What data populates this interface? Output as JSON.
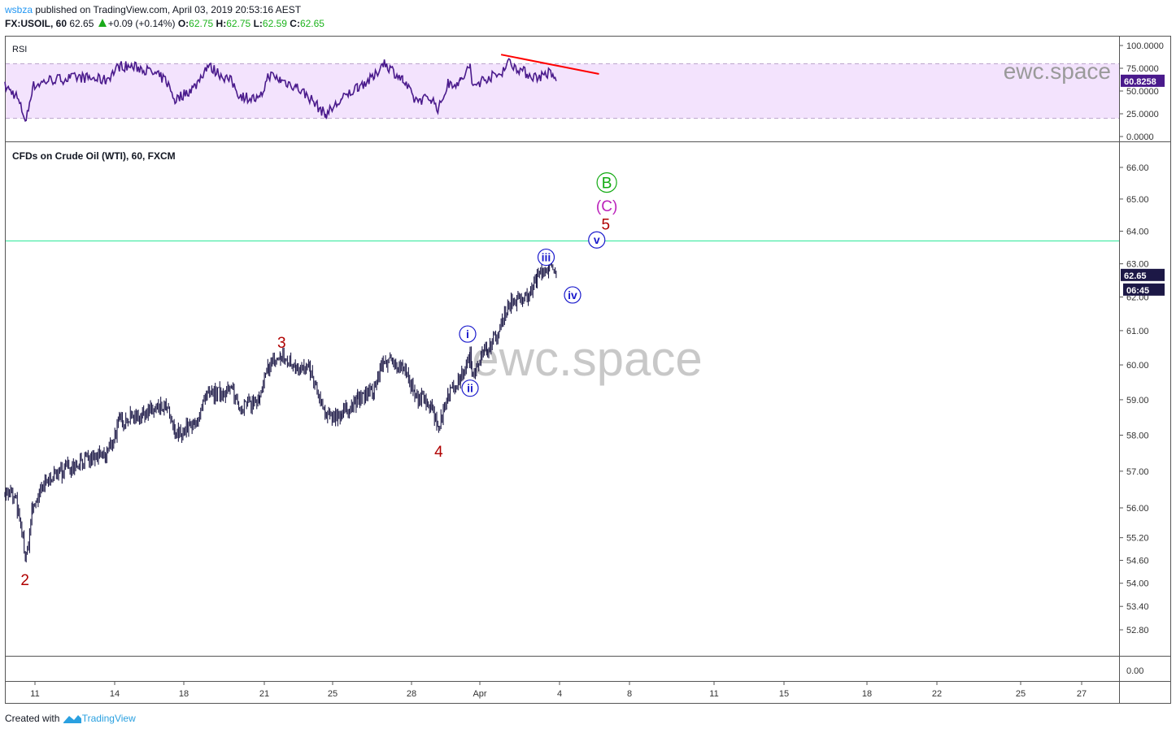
{
  "header": {
    "user": "wsbza",
    "published": "published on TradingView.com, April 03, 2019 20:53:16 AEST",
    "symbol": "FX:USOIL, 60",
    "last": "62.65",
    "change": "+0.09 (+0.14%)",
    "o_label": "O:",
    "o": "62.75",
    "h_label": "H:",
    "h": "62.75",
    "l_label": "L:",
    "l": "62.59",
    "c_label": "C:",
    "c": "62.65"
  },
  "rsi_pane": {
    "title": "RSI",
    "value_badge": "60.8258",
    "ticks": [
      "100.0000",
      "75.0000",
      "50.0000",
      "25.0000",
      "0.0000"
    ],
    "tick_values": [
      100,
      75,
      50,
      25,
      0
    ],
    "bands": [
      80,
      20
    ],
    "watermark": "ewc.space"
  },
  "main_pane": {
    "title": "CFDs on Crude Oil (WTI), 60, FXCM",
    "watermark": "ewc.space",
    "price_badge": "62.65",
    "countdown_badge": "06:45",
    "ticks": [
      "66.00",
      "65.00",
      "64.00",
      "63.00",
      "62.00",
      "61.00",
      "60.00",
      "59.00",
      "58.00",
      "57.00",
      "56.00",
      "55.20",
      "54.60",
      "54.00",
      "53.40",
      "52.80"
    ],
    "tick_values": [
      66,
      65,
      64,
      63,
      62,
      61,
      60,
      59,
      58,
      57,
      56,
      55.2,
      54.6,
      54,
      53.4,
      52.8
    ]
  },
  "volume_pane": {
    "tick": "0.00"
  },
  "time_axis": {
    "ticks": [
      "11",
      "14",
      "18",
      "21",
      "25",
      "28",
      "Apr",
      "4",
      "8",
      "11",
      "15",
      "18",
      "22",
      "25",
      "27"
    ],
    "tick_dates": [
      "Mar 11",
      "Mar 14",
      "Mar 18",
      "Mar 21",
      "Mar 25",
      "Mar 28",
      "Apr 1",
      "Apr 4",
      "Apr 8",
      "Apr 11",
      "Apr 15",
      "Apr 18",
      "Apr 22",
      "Apr 25",
      "Apr 27"
    ]
  },
  "colors": {
    "rsi_line": "#4a1a8c",
    "rsi_band": "#f3e3fd",
    "candle": "#1c1846",
    "trendline": "#ff0000",
    "hline": "#2ee89a",
    "wave_red": "#b00000",
    "wave_blue": "#1a1acc",
    "wave_green": "#11aa11",
    "wave_magenta": "#bb22bb",
    "badge_rsi": "#4a1a8c",
    "badge_price": "#1c1846"
  },
  "chart_data": {
    "type": "candlestick",
    "scale": "log",
    "ylim": [
      52.5,
      66.6
    ],
    "rsi_ylim": [
      0,
      100
    ],
    "x": [
      "Mar 10 00:00",
      "Mar 10 09:00",
      "Mar 10 17:00",
      "Mar 10 22:00",
      "Mar 11 12:00",
      "Mar 12 18:00",
      "Mar 13 16:00",
      "Mar 14 05:00",
      "Mar 15 02:00",
      "Mar 17 04:00",
      "Mar 17 14:00",
      "Mar 18 10:00",
      "Mar 18 21:00",
      "Mar 19 19:00",
      "Mar 20 02:00",
      "Mar 20 20:00",
      "Mar 21 04:00",
      "Mar 21 15:00",
      "Mar 22 06:00",
      "Mar 22 21:00",
      "Mar 24 15:00",
      "Mar 25 08:00",
      "Mar 25 23:00",
      "Mar 26 14:00",
      "Mar 26 22:00",
      "Mar 27 16:00",
      "Mar 28 03:00",
      "Mar 28 18:00",
      "Mar 29 01:00",
      "Mar 29 09:00",
      "Mar 29 20:00",
      "Mar 31 08:00",
      "Mar 31 11:00",
      "Apr 1 07:00",
      "Apr 1 18:00",
      "Apr 2 01:00",
      "Apr 2 20:00",
      "Apr 3 04:00",
      "Apr 3 15:00",
      "Apr 3 21:00"
    ],
    "price": [
      56.5,
      56.2,
      54.6,
      56.0,
      56.8,
      57.3,
      57.4,
      58.4,
      58.6,
      58.8,
      58.0,
      58.3,
      59.1,
      59.3,
      58.8,
      59.0,
      60.0,
      60.2,
      60.0,
      59.8,
      58.5,
      58.6,
      59.0,
      59.3,
      60.1,
      60.0,
      59.1,
      58.9,
      58.2,
      59.2,
      59.6,
      60.2,
      59.8,
      60.5,
      61.0,
      61.8,
      62.0,
      62.6,
      62.9,
      62.65
    ],
    "rsi": [
      55,
      45,
      17,
      55,
      62,
      65,
      62,
      78,
      75,
      62,
      40,
      55,
      78,
      60,
      45,
      40,
      68,
      62,
      55,
      42,
      24,
      40,
      55,
      65,
      82,
      62,
      40,
      42,
      30,
      58,
      60,
      78,
      55,
      65,
      68,
      82,
      68,
      65,
      70,
      61
    ],
    "rsi_trendline": [
      {
        "x": "Apr 1 19:00",
        "y": 90
      },
      {
        "x": "Apr 5 12:00",
        "y": 68.75
      }
    ],
    "horizontal_line": 63.7,
    "wave_labels": [
      {
        "text": "2",
        "x": "Mar 10 16:00",
        "y": 54.1,
        "style": "red"
      },
      {
        "text": "3",
        "x": "Mar 21 16:00",
        "y": 60.66,
        "style": "red"
      },
      {
        "text": "4",
        "x": "Mar 29 01:00",
        "y": 57.56,
        "style": "red"
      },
      {
        "text": "i",
        "x": "Mar 31 04:00",
        "y": 60.9,
        "style": "blue-circle"
      },
      {
        "text": "ii",
        "x": "Mar 31 08:00",
        "y": 59.33,
        "style": "blue-circle"
      },
      {
        "text": "iii",
        "x": "Apr 3 12:00",
        "y": 63.2,
        "style": "blue-circle"
      },
      {
        "text": "iv",
        "x": "Apr 4 12:00",
        "y": 62.06,
        "style": "blue-circle"
      },
      {
        "text": "v",
        "x": "Apr 5 10:00",
        "y": 63.73,
        "style": "blue-circle"
      },
      {
        "text": "5",
        "x": "Apr 5 18:00",
        "y": 64.22,
        "style": "red"
      },
      {
        "text": "(C)",
        "x": "Apr 5 19:00",
        "y": 64.8,
        "style": "magenta"
      },
      {
        "text": "B",
        "x": "Apr 5 19:00",
        "y": 65.52,
        "style": "green-circle"
      }
    ]
  },
  "footer": {
    "created": "Created with",
    "brand": "TradingView"
  }
}
